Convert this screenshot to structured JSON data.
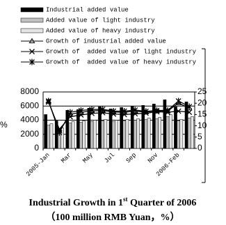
{
  "chart_data": {
    "type": "bar_line",
    "title": [
      "Industrial Growth in 1",
      "st",
      " Quarter of 2006"
    ],
    "subtitle": "（100 million RMB Yuan，%）",
    "y_label": "%",
    "categories": [
      "2005-Jan",
      null,
      "Mar",
      null,
      "May",
      null,
      "Jul",
      null,
      "Sep",
      null,
      "Nov",
      null,
      "2006-Feb",
      null
    ],
    "ylim": [
      0,
      8000
    ],
    "yticks": [
      0,
      2000,
      4000,
      6000,
      8000
    ],
    "y2lim": [
      0,
      25
    ],
    "y2ticks": [
      0,
      5,
      10,
      15,
      20,
      25
    ],
    "grid": true,
    "series": [
      {
        "name": "Industrial added value",
        "color": "#000000",
        "values": [
          4800,
          3900,
          5400,
          5500,
          5700,
          5900,
          5600,
          5800,
          6000,
          6100,
          6300,
          6900,
          5900,
          6600
        ]
      },
      {
        "name": "Added value of light industry",
        "color": "#c0c0c0",
        "values": [
          3300,
          2700,
          3600,
          3700,
          3800,
          3900,
          3800,
          3900,
          4000,
          4100,
          4200,
          4500,
          3900,
          4300
        ]
      },
      {
        "name": "Added value of heavy industry",
        "color": "#e4e4e4",
        "values": [
          3500,
          2900,
          3800,
          3900,
          4000,
          4100,
          4000,
          4100,
          4200,
          4300,
          4400,
          4800,
          4100,
          4500
        ]
      },
      {
        "name": "Growth of industrial added value",
        "color": "#000000",
        "axis": "y2",
        "marker": "triangle",
        "values": [
          20.9,
          7.6,
          15.1,
          16.0,
          16.6,
          16.8,
          16.1,
          16.0,
          16.5,
          16.1,
          16.6,
          16.5,
          20.1,
          17.8
        ]
      },
      {
        "name": "Growth of  added value of light industry",
        "color": "#000000",
        "axis": "y2",
        "marker": "x",
        "values": [
          20.5,
          8.5,
          14.0,
          14.8,
          15.5,
          15.8,
          15.2,
          15.0,
          15.3,
          15.6,
          16.2,
          16.0,
          16.5,
          16.0
        ]
      },
      {
        "name": "Growth of  added value of heavy industry",
        "color": "#000000",
        "axis": "y2",
        "marker": "star",
        "values": [
          21.0,
          7.0,
          16.0,
          16.8,
          17.2,
          17.3,
          16.5,
          16.5,
          17.0,
          16.4,
          16.8,
          16.8,
          21.0,
          18.5
        ]
      }
    ]
  }
}
